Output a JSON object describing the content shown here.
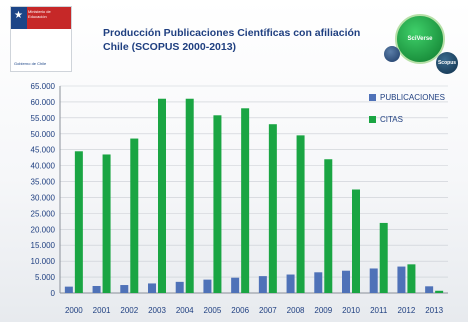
{
  "header": {
    "title_line1": "Producción Publicaciones Científicas con afiliación",
    "title_line2": "Chile (SCOPUS 2000-2013)"
  },
  "logos": {
    "gov": {
      "ministry_text": "Ministerio de Educación",
      "footer_text": "Gobierno de Chile"
    },
    "brand_main": "SciVerse",
    "brand_small": "Scopus"
  },
  "colors": {
    "publicaciones": "#4f72b8",
    "citas": "#1aa543",
    "text": "#1f3f80",
    "grid": "#c9cdd3"
  },
  "chart_data": {
    "type": "bar",
    "categories": [
      "2000",
      "2001",
      "2002",
      "2003",
      "2004",
      "2005",
      "2006",
      "2007",
      "2008",
      "2009",
      "2010",
      "2011",
      "2012",
      "2013"
    ],
    "series": [
      {
        "name": "PUBLICACIONES",
        "values": [
          2000,
          2200,
          2500,
          3000,
          3500,
          4200,
          4800,
          5300,
          5800,
          6500,
          7000,
          7700,
          8300,
          2100
        ]
      },
      {
        "name": "CITAS",
        "values": [
          44500,
          43500,
          48500,
          61000,
          61000,
          55800,
          58000,
          53000,
          49500,
          42000,
          32500,
          22000,
          9000,
          700
        ]
      }
    ],
    "ylim": [
      0,
      65000
    ],
    "yticks": [
      "0",
      "5.000",
      "10.000",
      "15.000",
      "20.000",
      "25.000",
      "30.000",
      "35.000",
      "40.000",
      "45.000",
      "50.000",
      "55.000",
      "60.000",
      "65.000"
    ],
    "grid": true,
    "legend_position": "right"
  }
}
